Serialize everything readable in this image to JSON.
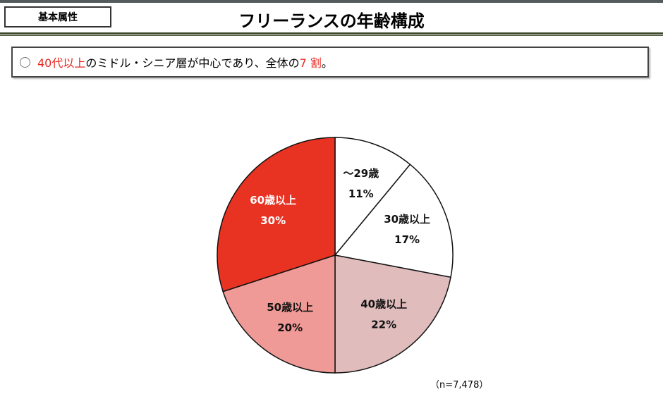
{
  "header": {
    "tag": "基本属性",
    "title": "フリーランスの年齢構成"
  },
  "summary": {
    "bullet_icon": "circle-bullet-icon",
    "highlight1": "40代以上",
    "text1": "のミドル・シニア層が中心であり、全体の",
    "highlight2": "7 割",
    "text2": "。",
    "highlight_color": "#e8271f"
  },
  "chart_data": {
    "type": "pie",
    "start": "top",
    "direction": "clockwise",
    "categories": [
      "～29歳",
      "30歳以上",
      "40歳以上",
      "50歳以上",
      "60歳以上"
    ],
    "values": [
      11,
      17,
      22,
      20,
      30
    ],
    "labels": [
      "11%",
      "17%",
      "22%",
      "20%",
      "30%"
    ],
    "colors": [
      "#ffffff",
      "#ffffff",
      "#e0bcbc",
      "#ef9a96",
      "#e83323"
    ],
    "label_colors": [
      "#111111",
      "#111111",
      "#111111",
      "#111111",
      "#ffffff"
    ],
    "note": "（n=7,478）"
  }
}
